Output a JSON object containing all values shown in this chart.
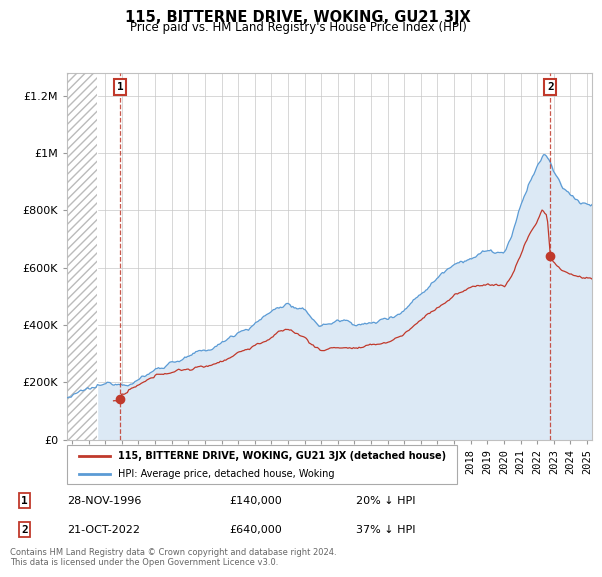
{
  "title": "115, BITTERNE DRIVE, WOKING, GU21 3JX",
  "subtitle": "Price paid vs. HM Land Registry's House Price Index (HPI)",
  "y_ticks": [
    0,
    200000,
    400000,
    600000,
    800000,
    1000000,
    1200000
  ],
  "ylim": [
    0,
    1280000
  ],
  "xlim_start": 1993.7,
  "xlim_end": 2025.3,
  "transaction1": {
    "date_num": 1996.91,
    "price": 140000,
    "label": "1",
    "text": "28-NOV-1996",
    "amount": "£140,000",
    "note": "20% ↓ HPI"
  },
  "transaction2": {
    "date_num": 2022.79,
    "price": 640000,
    "label": "2",
    "text": "21-OCT-2022",
    "amount": "£640,000",
    "note": "37% ↓ HPI"
  },
  "legend_line1_label": "115, BITTERNE DRIVE, WOKING, GU21 3JX (detached house)",
  "legend_line2_label": "HPI: Average price, detached house, Woking",
  "footer": "Contains HM Land Registry data © Crown copyright and database right 2024.\nThis data is licensed under the Open Government Licence v3.0.",
  "hpi_color": "#5b9bd5",
  "hpi_fill_color": "#dce9f5",
  "price_color": "#c0392b",
  "grid_color": "#c8c8c8",
  "hatch_end": 1995.5
}
